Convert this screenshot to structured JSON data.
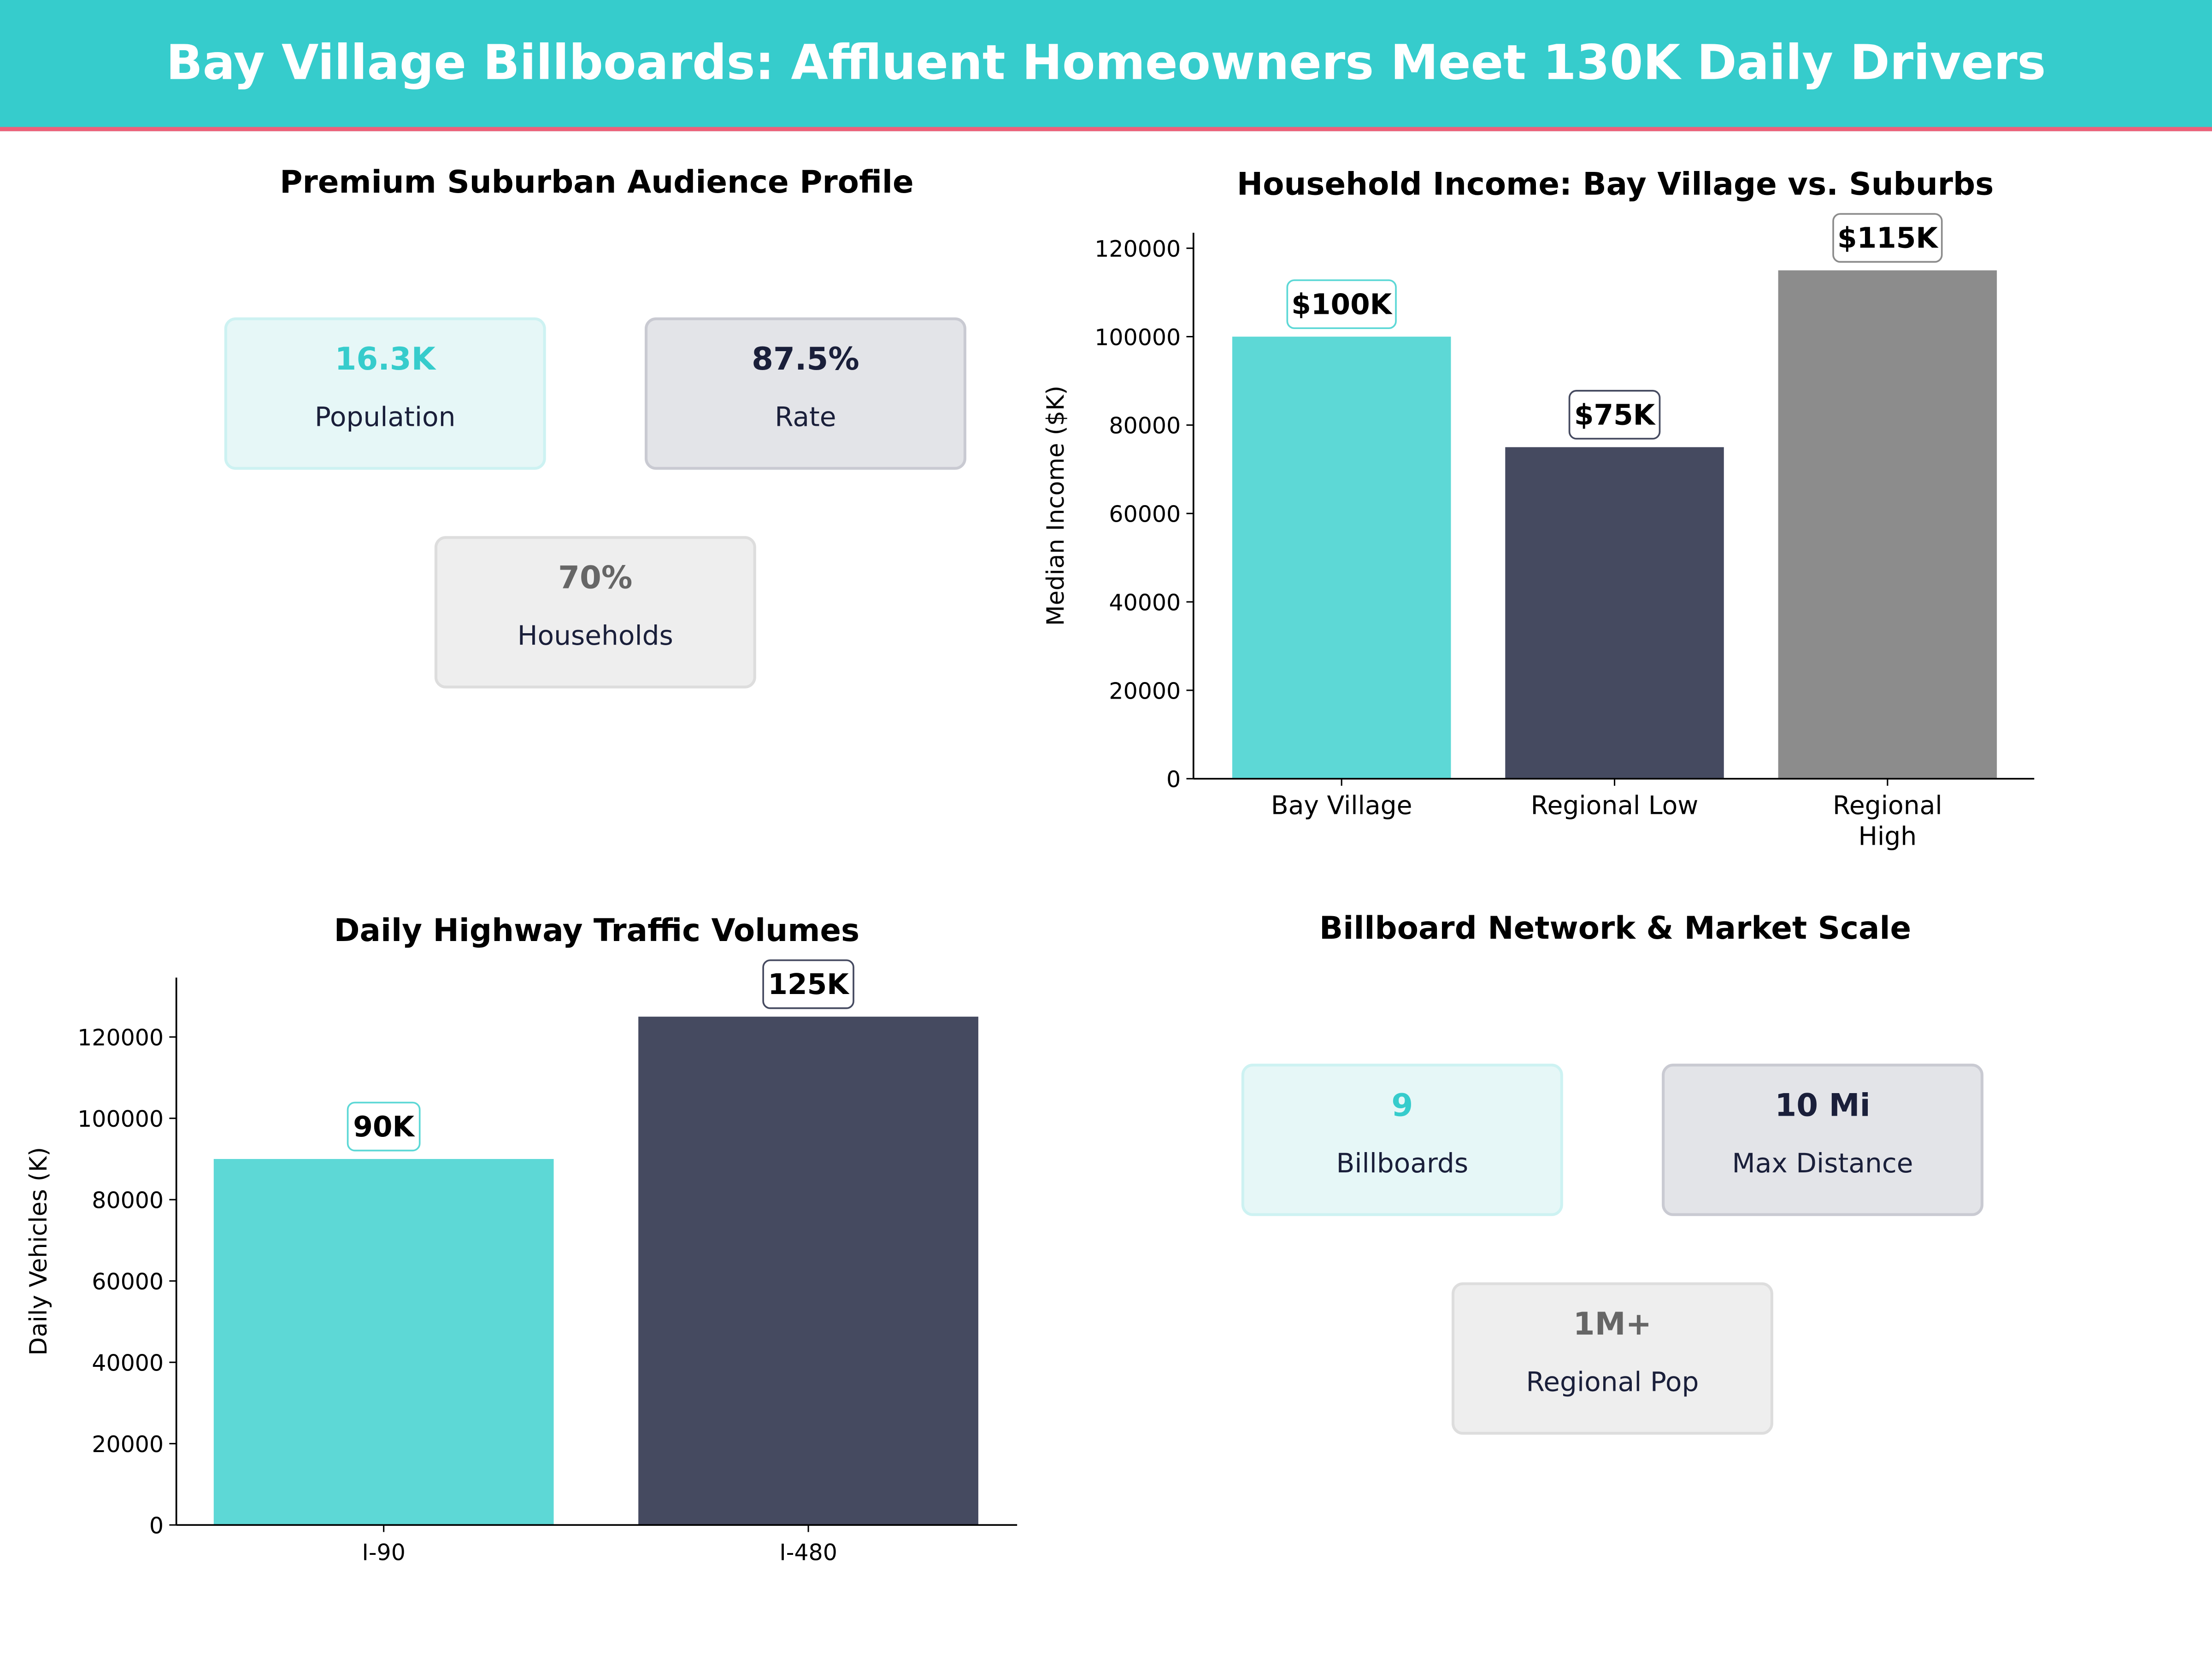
{
  "title": "Bay Village Billboards: Affluent Homeowners Meet 130K Daily Drivers",
  "colors": {
    "teal": "#36CCCC",
    "accent_line": "#EF6079",
    "bar_teal": "#5DD8D6",
    "bar_navy": "#454A60",
    "bar_gray": "#8C8C8C"
  },
  "audience": {
    "title": "Premium Suburban Audience Profile",
    "cards": [
      {
        "value": "16.3K",
        "label": "Population"
      },
      {
        "value": "87.5%",
        "label": "Rate"
      },
      {
        "value": "70%",
        "label": "Households"
      }
    ]
  },
  "network": {
    "title": "Billboard Network & Market Scale",
    "cards": [
      {
        "value": "9",
        "label": "Billboards"
      },
      {
        "value": "10 Mi",
        "label": "Max Distance"
      },
      {
        "value": "1M+",
        "label": "Regional Pop"
      }
    ]
  },
  "chart_data": [
    {
      "type": "bar",
      "title": "Household Income: Bay Village vs. Suburbs",
      "categories": [
        "Bay Village",
        "Regional Low",
        "Regional High"
      ],
      "values": [
        100000,
        75000,
        115000
      ],
      "data_labels": [
        "$100K",
        "$75K",
        "$115K"
      ],
      "colors": [
        "#5DD8D6",
        "#454A60",
        "#8C8C8C"
      ],
      "xlabel": "",
      "ylabel": "Median Income ($K)",
      "ylim": [
        0,
        123500
      ],
      "yticks": [
        0,
        20000,
        40000,
        60000,
        80000,
        100000,
        120000
      ],
      "grid": false
    },
    {
      "type": "bar",
      "title": "Daily Highway Traffic Volumes",
      "categories": [
        "I-90",
        "I-480"
      ],
      "values": [
        90000,
        125000
      ],
      "data_labels": [
        "90K",
        "125K"
      ],
      "colors": [
        "#5DD8D6",
        "#454A60"
      ],
      "xlabel": "",
      "ylabel": "Daily Vehicles (K)",
      "ylim": [
        0,
        134600
      ],
      "yticks": [
        0,
        20000,
        40000,
        60000,
        80000,
        100000,
        120000
      ],
      "grid": false
    }
  ]
}
